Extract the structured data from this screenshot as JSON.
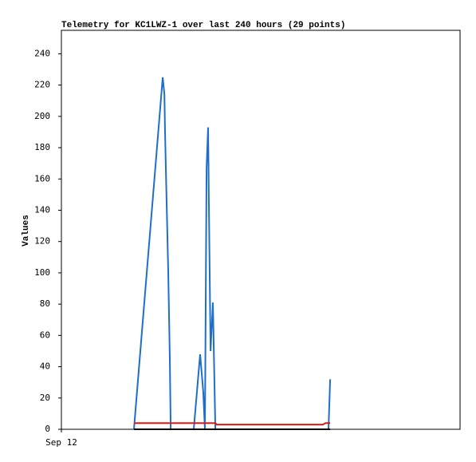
{
  "chart_data": {
    "type": "line",
    "title": "Telemetry for KC1LWZ-1 over last 240 hours (29 points)",
    "y_label": "Values",
    "xlim": [
      0,
      240
    ],
    "xticks": [
      {
        "value": 0,
        "label": "Sep 12"
      }
    ],
    "ylim": [
      0,
      255
    ],
    "yticks": [
      0,
      20,
      40,
      60,
      80,
      100,
      120,
      140,
      160,
      180,
      200,
      220,
      240
    ],
    "grid": false,
    "series": [
      {
        "color": "#1f6fc8",
        "x": [
          43.7,
          61,
          62,
          62.4,
          62.9,
          64.3,
          65.3,
          65.8,
          79.7,
          83.5,
          85.4,
          86.4,
          87.4,
          88.3,
          88.8,
          89.8,
          91.2,
          92.7,
          160.8,
          161.8
        ],
        "values": [
          0,
          225,
          214,
          190,
          167,
          101,
          45,
          0,
          0,
          48,
          24,
          0,
          167,
          193,
          144,
          50,
          81,
          0,
          0,
          32
        ]
      },
      {
        "color": "#e8150e",
        "x": [
          43.7,
          92.7,
          93.5,
          157.4,
          159,
          161.8
        ],
        "values": [
          4,
          4,
          3,
          3,
          4,
          4
        ]
      },
      {
        "color": "#000000",
        "x": [
          43.7,
          161.8
        ],
        "values": [
          0,
          0
        ]
      }
    ]
  }
}
